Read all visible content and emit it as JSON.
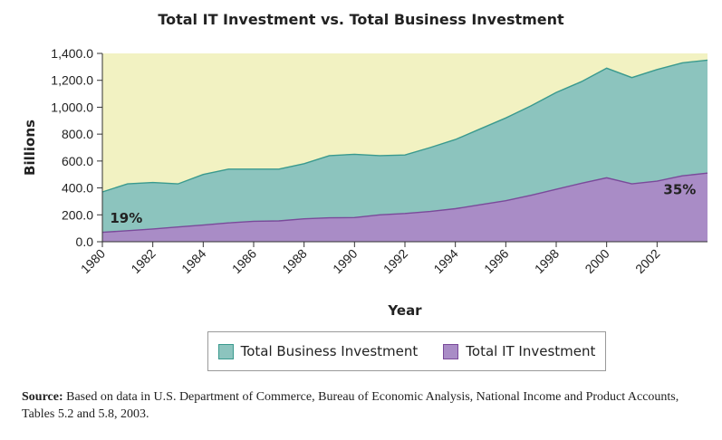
{
  "chart_data": {
    "type": "area",
    "title": "Total IT Investment vs. Total Business Investment",
    "xlabel": "Year",
    "ylabel": "Billions",
    "ylim": [
      0,
      1400
    ],
    "xlim": [
      1980,
      2004
    ],
    "y_ticks": [
      "0.0",
      "200.0",
      "400.0",
      "600.0",
      "800.0",
      "1,000.0",
      "1,200.0",
      "1,400.0"
    ],
    "y_tick_values": [
      0,
      200,
      400,
      600,
      800,
      1000,
      1200,
      1400
    ],
    "x_ticks": [
      1980,
      1982,
      1984,
      1986,
      1988,
      1990,
      1992,
      1994,
      1996,
      1998,
      2000,
      2002
    ],
    "x": [
      1980,
      1981,
      1982,
      1983,
      1984,
      1985,
      1986,
      1987,
      1988,
      1989,
      1990,
      1991,
      1992,
      1993,
      1994,
      1995,
      1996,
      1997,
      1998,
      1999,
      2000,
      2001,
      2002,
      2003,
      2004
    ],
    "series": [
      {
        "name": "Total Business Investment",
        "color": "#8cc4be",
        "values": [
          370,
          430,
          440,
          430,
          500,
          540,
          540,
          540,
          580,
          640,
          650,
          640,
          645,
          700,
          760,
          840,
          920,
          1010,
          1110,
          1190,
          1290,
          1220,
          1280,
          1330,
          1350
        ]
      },
      {
        "name": "Total IT Investment",
        "color": "#a98cc6",
        "values": [
          70,
          82,
          95,
          110,
          124,
          140,
          152,
          155,
          170,
          178,
          180,
          200,
          210,
          225,
          246,
          275,
          305,
          345,
          390,
          435,
          475,
          430,
          450,
          490,
          510
        ]
      }
    ],
    "annotations": [
      {
        "text": "19%",
        "x": 1980.3,
        "y": 140
      },
      {
        "text": "35%",
        "x": 2002.9,
        "y": 355
      }
    ],
    "plot_background": "#f2f2c2",
    "grid": false,
    "legend_position": "bottom"
  },
  "legend": {
    "items": [
      {
        "label": "Total Business Investment",
        "color": "#8cc4be",
        "border": "#3a9a8e"
      },
      {
        "label": "Total IT Investment",
        "color": "#a98cc6",
        "border": "#7a4a9a"
      }
    ]
  },
  "source": {
    "label": "Source:",
    "text": "Based on data in U.S. Department of Commerce, Bureau of Economic Analysis, National Income and Product Accounts, Tables 5.2 and 5.8, 2003."
  }
}
